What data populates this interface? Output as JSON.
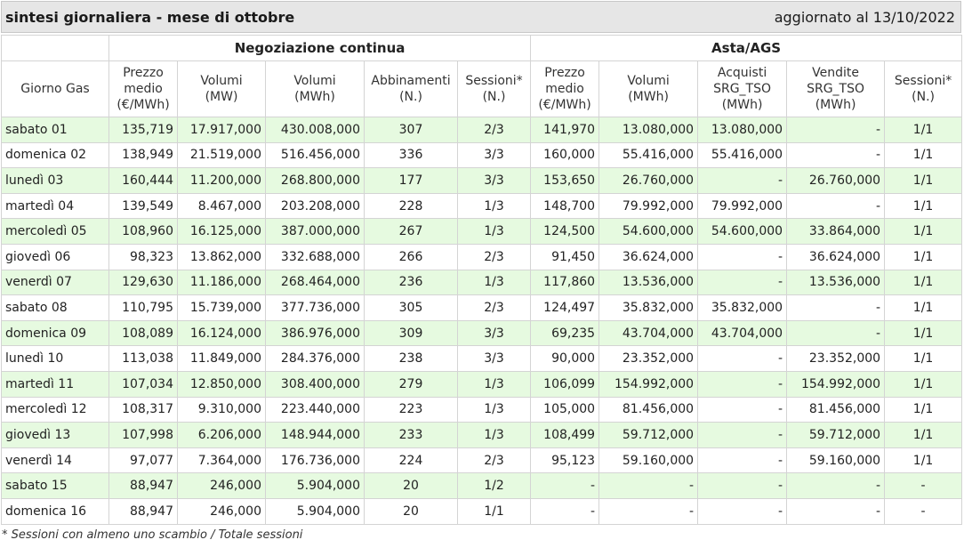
{
  "header": {
    "title": "sintesi giornaliera - mese di ottobre",
    "updated": "aggiornato al 13/10/2022"
  },
  "table": {
    "group_headers": {
      "continuous": "Negoziazione continua",
      "auction": "Asta/AGS"
    },
    "columns": {
      "day": "Giorno Gas",
      "nc_price": "Prezzo\nmedio\n(€/MWh)",
      "nc_vol_mw": "Volumi\n(MW)",
      "nc_vol_mwh": "Volumi\n(MWh)",
      "nc_matches": "Abbinamenti\n(N.)",
      "nc_sessions": "Sessioni*\n(N.)",
      "a_price": "Prezzo\nmedio\n(€/MWh)",
      "a_vol_mwh": "Volumi\n(MWh)",
      "a_buy": "Acquisti\nSRG_TSO\n(MWh)",
      "a_sell": "Vendite\nSRG_TSO\n(MWh)",
      "a_sessions": "Sessioni*\n(N.)"
    },
    "rows": [
      [
        "sabato 01",
        "135,719",
        "17.917,000",
        "430.008,000",
        "307",
        "2/3",
        "141,970",
        "13.080,000",
        "13.080,000",
        "-",
        "1/1"
      ],
      [
        "domenica 02",
        "138,949",
        "21.519,000",
        "516.456,000",
        "336",
        "3/3",
        "160,000",
        "55.416,000",
        "55.416,000",
        "-",
        "1/1"
      ],
      [
        "lunedì 03",
        "160,444",
        "11.200,000",
        "268.800,000",
        "177",
        "3/3",
        "153,650",
        "26.760,000",
        "-",
        "26.760,000",
        "1/1"
      ],
      [
        "martedì 04",
        "139,549",
        "8.467,000",
        "203.208,000",
        "228",
        "1/3",
        "148,700",
        "79.992,000",
        "79.992,000",
        "-",
        "1/1"
      ],
      [
        "mercoledì 05",
        "108,960",
        "16.125,000",
        "387.000,000",
        "267",
        "1/3",
        "124,500",
        "54.600,000",
        "54.600,000",
        "33.864,000",
        "1/1"
      ],
      [
        "giovedì 06",
        "98,323",
        "13.862,000",
        "332.688,000",
        "266",
        "2/3",
        "91,450",
        "36.624,000",
        "-",
        "36.624,000",
        "1/1"
      ],
      [
        "venerdì 07",
        "129,630",
        "11.186,000",
        "268.464,000",
        "236",
        "1/3",
        "117,860",
        "13.536,000",
        "-",
        "13.536,000",
        "1/1"
      ],
      [
        "sabato 08",
        "110,795",
        "15.739,000",
        "377.736,000",
        "305",
        "2/3",
        "124,497",
        "35.832,000",
        "35.832,000",
        "-",
        "1/1"
      ],
      [
        "domenica 09",
        "108,089",
        "16.124,000",
        "386.976,000",
        "309",
        "3/3",
        "69,235",
        "43.704,000",
        "43.704,000",
        "-",
        "1/1"
      ],
      [
        "lunedì 10",
        "113,038",
        "11.849,000",
        "284.376,000",
        "238",
        "3/3",
        "90,000",
        "23.352,000",
        "-",
        "23.352,000",
        "1/1"
      ],
      [
        "martedì 11",
        "107,034",
        "12.850,000",
        "308.400,000",
        "279",
        "1/3",
        "106,099",
        "154.992,000",
        "-",
        "154.992,000",
        "1/1"
      ],
      [
        "mercoledì 12",
        "108,317",
        "9.310,000",
        "223.440,000",
        "223",
        "1/3",
        "105,000",
        "81.456,000",
        "-",
        "81.456,000",
        "1/1"
      ],
      [
        "giovedì 13",
        "107,998",
        "6.206,000",
        "148.944,000",
        "233",
        "1/3",
        "108,499",
        "59.712,000",
        "-",
        "59.712,000",
        "1/1"
      ],
      [
        "venerdì 14",
        "97,077",
        "7.364,000",
        "176.736,000",
        "224",
        "2/3",
        "95,123",
        "59.160,000",
        "-",
        "59.160,000",
        "1/1"
      ],
      [
        "sabato 15",
        "88,947",
        "246,000",
        "5.904,000",
        "20",
        "1/2",
        "-",
        "-",
        "-",
        "-",
        "-"
      ],
      [
        "domenica 16",
        "88,947",
        "246,000",
        "5.904,000",
        "20",
        "1/1",
        "-",
        "-",
        "-",
        "-",
        "-"
      ]
    ]
  },
  "footnote": "* Sessioni con almeno uno scambio / Totale sessioni"
}
